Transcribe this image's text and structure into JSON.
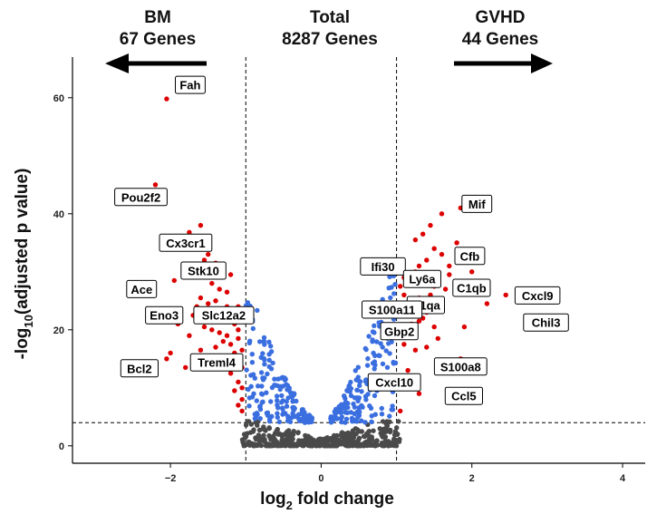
{
  "headers": {
    "left": {
      "line1": "BM",
      "line2": "67 Genes"
    },
    "center": {
      "line1": "Total",
      "line2": "8287 Genes"
    },
    "right": {
      "line1": "GVHD",
      "line2": "44 Genes"
    }
  },
  "chart_data": {
    "type": "scatter",
    "xlabel": "log2 fold change",
    "ylabel": "-log10(adjusted p value)",
    "xlim": [
      -3.3,
      4.3
    ],
    "ylim": [
      -3,
      67
    ],
    "xticks": [
      -2,
      0,
      2,
      4
    ],
    "yticks": [
      0,
      20,
      40,
      60
    ],
    "thresholds": {
      "fold_change": [
        -1,
        1
      ],
      "p_value": 4
    },
    "colors": {
      "down": "#dd0000",
      "up": "#dd0000",
      "mid": "#3b6fe0",
      "ns": "#4a4a4a"
    },
    "labeled_genes": [
      {
        "gene": "Fah",
        "x": -2.05,
        "y": 59.8
      },
      {
        "gene": "Pou2f2",
        "x": -2.2,
        "y": 45.0
      },
      {
        "gene": "Cx3cr1",
        "x": -1.75,
        "y": 36.8
      },
      {
        "gene": "Stk10",
        "x": -1.55,
        "y": 32.0
      },
      {
        "gene": "Ace",
        "x": -1.95,
        "y": 28.5
      },
      {
        "gene": "Eno3",
        "x": -1.65,
        "y": 24.0
      },
      {
        "gene": "Slc12a2",
        "x": -1.1,
        "y": 24.0
      },
      {
        "gene": "Treml4",
        "x": -1.05,
        "y": 16.5
      },
      {
        "gene": "Bcl2",
        "x": -2.05,
        "y": 15.0
      },
      {
        "gene": "Mif",
        "x": 1.85,
        "y": 41.0
      },
      {
        "gene": "Cfb",
        "x": 1.9,
        "y": 32.5
      },
      {
        "gene": "Ifi30",
        "x": 1.0,
        "y": 31.0
      },
      {
        "gene": "Ly6a",
        "x": 1.1,
        "y": 29.0
      },
      {
        "gene": "C1qb",
        "x": 1.9,
        "y": 27.0
      },
      {
        "gene": "C1qa",
        "x": 1.1,
        "y": 24.5
      },
      {
        "gene": "S100a11",
        "x": 1.0,
        "y": 24.5
      },
      {
        "gene": "Cxcl9",
        "x": 2.45,
        "y": 26.0
      },
      {
        "gene": "Chil3",
        "x": 2.9,
        "y": 21.5
      },
      {
        "gene": "Gbp2",
        "x": 1.05,
        "y": 20.0
      },
      {
        "gene": "S100a8",
        "x": 1.85,
        "y": 15.0
      },
      {
        "gene": "Cxcl10",
        "x": 1.2,
        "y": 11.5
      },
      {
        "gene": "Ccl5",
        "x": 2.05,
        "y": 9.0
      }
    ],
    "sig_down": [
      [
        -2.15,
        44
      ],
      [
        -1.6,
        38
      ],
      [
        -1.5,
        33
      ],
      [
        -1.4,
        31.5
      ],
      [
        -1.3,
        30.5
      ],
      [
        -1.2,
        29.5
      ],
      [
        -1.45,
        28
      ],
      [
        -1.35,
        27
      ],
      [
        -1.25,
        26.5
      ],
      [
        -1.6,
        25.5
      ],
      [
        -1.5,
        24.5
      ],
      [
        -1.7,
        22.5
      ],
      [
        -1.4,
        23
      ],
      [
        -1.3,
        22
      ],
      [
        -1.2,
        21.5
      ],
      [
        -1.15,
        21
      ],
      [
        -1.55,
        20.5
      ],
      [
        -1.45,
        20
      ],
      [
        -1.35,
        19.5
      ],
      [
        -1.25,
        19
      ],
      [
        -1.1,
        18.5
      ],
      [
        -1.3,
        18
      ],
      [
        -1.2,
        17.5
      ],
      [
        -1.4,
        17
      ],
      [
        -1.15,
        16
      ],
      [
        -1.25,
        15.5
      ],
      [
        -1.1,
        14.5
      ],
      [
        -1.05,
        13.5
      ],
      [
        -1.2,
        12.5
      ],
      [
        -1.1,
        11
      ],
      [
        -1.15,
        9.5
      ],
      [
        -1.05,
        8
      ],
      [
        -1.1,
        7
      ],
      [
        -1.05,
        6
      ],
      [
        -1.6,
        16.5
      ],
      [
        -1.75,
        19
      ],
      [
        -1.9,
        21
      ],
      [
        -2.0,
        16
      ],
      [
        -1.8,
        13.5
      ],
      [
        -1.05,
        10
      ],
      [
        -1.3,
        14
      ],
      [
        -1.4,
        25
      ],
      [
        -1.5,
        30
      ],
      [
        -1.25,
        24
      ],
      [
        -1.1,
        20
      ]
    ],
    "sig_up": [
      [
        1.6,
        40
      ],
      [
        1.45,
        38
      ],
      [
        1.35,
        36.5
      ],
      [
        1.25,
        35.5
      ],
      [
        1.5,
        34
      ],
      [
        1.6,
        33
      ],
      [
        1.4,
        32
      ],
      [
        1.3,
        31
      ],
      [
        1.25,
        30
      ],
      [
        1.2,
        29
      ],
      [
        1.35,
        28
      ],
      [
        1.5,
        27.5
      ],
      [
        1.65,
        27
      ],
      [
        1.45,
        26
      ],
      [
        1.3,
        25.5
      ],
      [
        1.2,
        25
      ],
      [
        1.15,
        24
      ],
      [
        1.25,
        23.5
      ],
      [
        1.4,
        23
      ],
      [
        1.35,
        22
      ],
      [
        1.2,
        21
      ],
      [
        1.1,
        22.5
      ],
      [
        1.15,
        20
      ],
      [
        1.05,
        27.5
      ],
      [
        1.1,
        19
      ],
      [
        1.55,
        18.5
      ],
      [
        1.4,
        17
      ],
      [
        1.25,
        16.5
      ],
      [
        1.1,
        26
      ],
      [
        1.7,
        31
      ],
      [
        2.0,
        30
      ],
      [
        1.8,
        35
      ],
      [
        1.9,
        20.5
      ],
      [
        1.6,
        24
      ],
      [
        1.15,
        13
      ],
      [
        1.05,
        10
      ],
      [
        1.1,
        17.5
      ],
      [
        1.3,
        9
      ],
      [
        1.05,
        6
      ],
      [
        2.15,
        28
      ],
      [
        2.2,
        24.5
      ],
      [
        1.7,
        29.5
      ],
      [
        1.3,
        21.5
      ],
      [
        1.5,
        20.5
      ]
    ]
  }
}
